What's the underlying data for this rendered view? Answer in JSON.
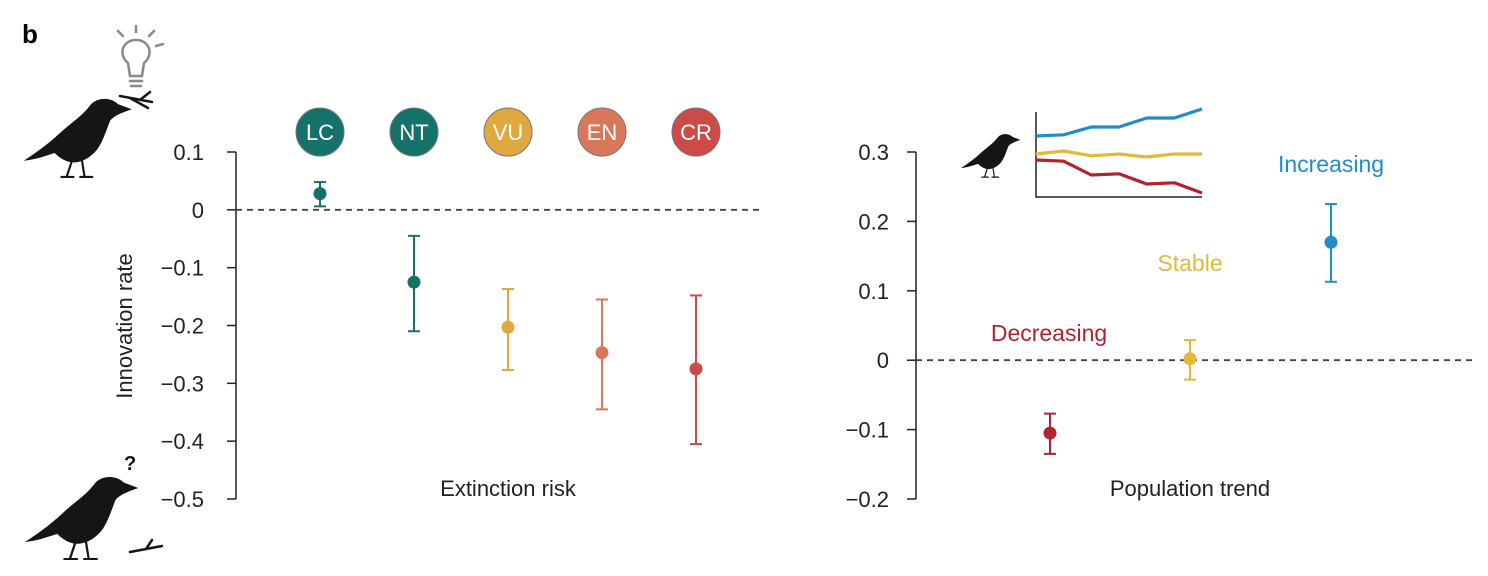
{
  "panel_label": "b",
  "colors": {
    "LC": "#15726a",
    "NT": "#15726a",
    "VU": "#e0a93f",
    "EN": "#d8775a",
    "CR": "#cc4a48",
    "Decreasing": "#b3232f",
    "Stable": "#e3b93a",
    "Increasing": "#1e8ec6"
  },
  "chart_data": [
    {
      "type": "scatter",
      "subtype": "point-with-error-bars",
      "title": "",
      "xlabel": "Extinction risk",
      "ylabel": "Innovation rate",
      "ylim": [
        -0.5,
        0.1
      ],
      "yticks": [
        0.1,
        0,
        -0.1,
        -0.2,
        -0.3,
        -0.4,
        -0.5
      ],
      "ytick_labels": [
        "0.1",
        "0",
        "−0.1",
        "−0.2",
        "−0.3",
        "−0.4",
        "−0.5"
      ],
      "reference_line": 0,
      "categories": [
        "LC",
        "NT",
        "VU",
        "EN",
        "CR"
      ],
      "values": [
        0.028,
        -0.125,
        -0.203,
        -0.247,
        -0.275
      ],
      "lower": [
        0.006,
        -0.21,
        -0.277,
        -0.345,
        -0.405
      ],
      "upper": [
        0.048,
        -0.045,
        -0.137,
        -0.155,
        -0.148
      ]
    },
    {
      "type": "scatter",
      "subtype": "point-with-error-bars",
      "title": "",
      "xlabel": "Population trend",
      "ylabel": "",
      "ylim": [
        -0.2,
        0.3
      ],
      "yticks": [
        0.3,
        0.2,
        0.1,
        0,
        -0.1,
        -0.2
      ],
      "ytick_labels": [
        "0.3",
        "0.2",
        "0.1",
        "0",
        "−0.1",
        "−0.2"
      ],
      "reference_line": 0,
      "categories": [
        "Decreasing",
        "Stable",
        "Increasing"
      ],
      "values": [
        -0.105,
        0.002,
        0.17
      ],
      "lower": [
        -0.135,
        -0.028,
        0.113
      ],
      "upper": [
        -0.077,
        0.029,
        0.225
      ],
      "inset": {
        "type": "line",
        "series": [
          {
            "name": "Increasing",
            "values": [
              0.3,
              0.32,
              0.45,
              0.45,
              0.6,
              0.6,
              0.75
            ]
          },
          {
            "name": "Stable",
            "values": [
              0.0,
              0.05,
              -0.03,
              0.0,
              -0.05,
              0.0,
              0.0
            ]
          },
          {
            "name": "Decreasing",
            "values": [
              -0.1,
              -0.12,
              -0.35,
              -0.33,
              -0.5,
              -0.48,
              -0.65
            ]
          }
        ]
      }
    }
  ]
}
